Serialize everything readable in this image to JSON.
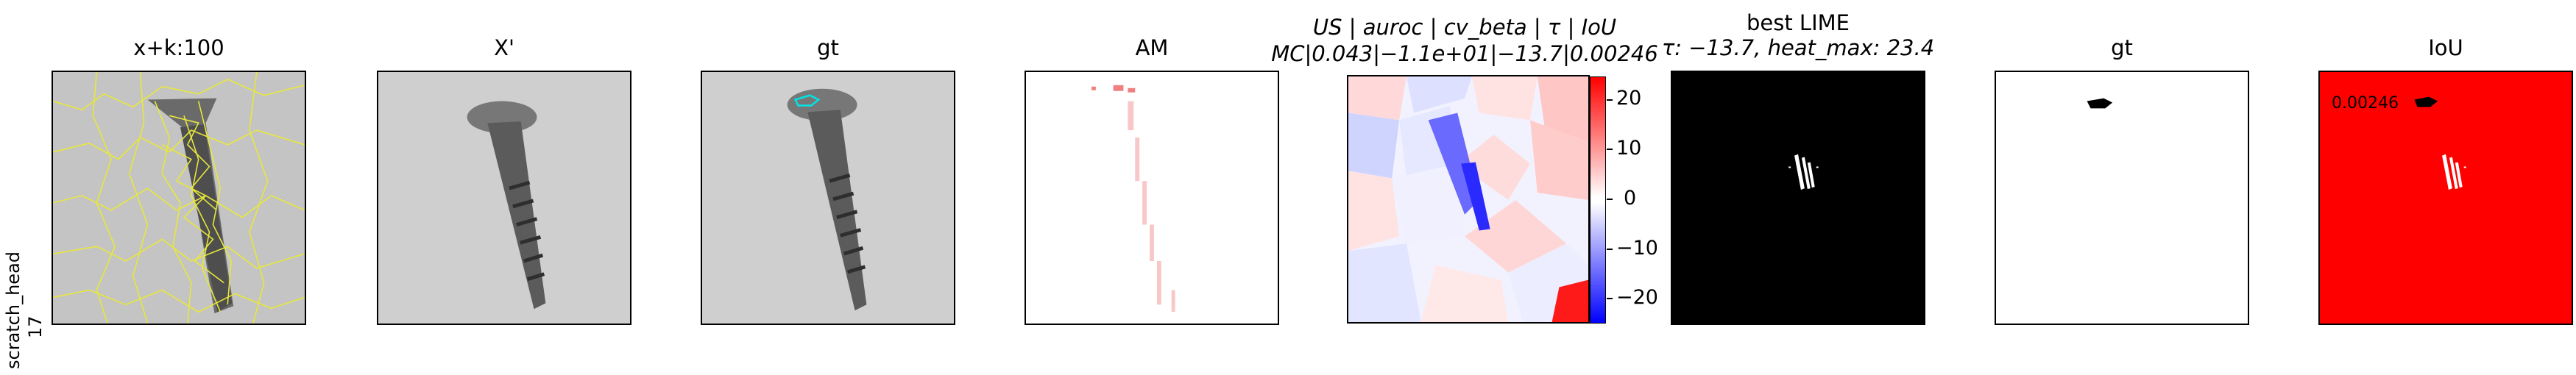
{
  "row": {
    "label_line1": "scratch_head",
    "label_line2": "17"
  },
  "panels": [
    {
      "id": "xk",
      "title": "x+k:100"
    },
    {
      "id": "xp",
      "title": "X'"
    },
    {
      "id": "gt1",
      "title": "gt"
    },
    {
      "id": "am",
      "title": "AM"
    },
    {
      "id": "us",
      "title_line1": "US | auroc | cv_beta | τ | IoU",
      "title_line2": "MC|0.043|−1.1e+01|−13.7|0.00246"
    },
    {
      "id": "lime",
      "title_line1": "best LIME",
      "title_line2": "τ: −13.7, heat_max: 23.4"
    },
    {
      "id": "gt2",
      "title": "gt"
    },
    {
      "id": "iou",
      "title": "IoU",
      "value_label": "0.00246"
    }
  ],
  "colorbar": {
    "ticks": [
      "20",
      "10",
      "0",
      "−10",
      "−20"
    ],
    "top_color": "#ff0000",
    "mid_color": "#ffffff",
    "bottom_color": "#0000ff"
  },
  "colors": {
    "overlay_boundary": "#e8e83a",
    "gt_contour": "#00e5e5",
    "iou_bg": "#ff0000"
  }
}
